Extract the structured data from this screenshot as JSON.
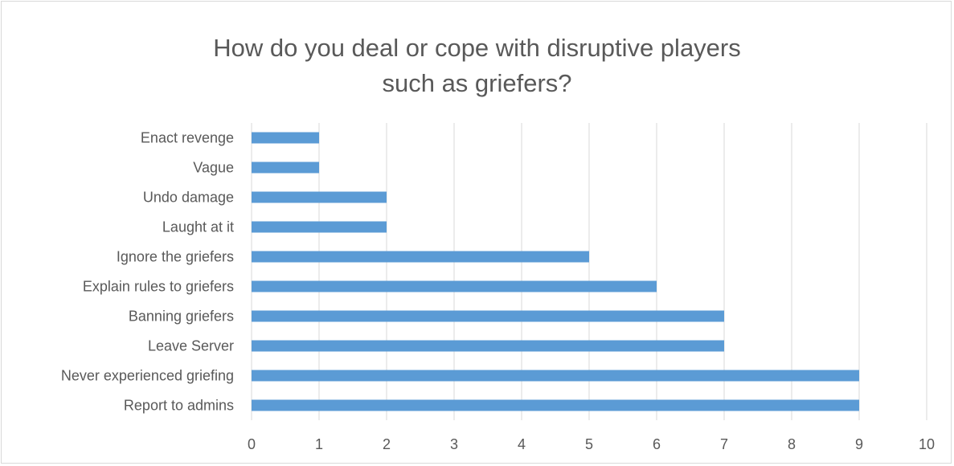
{
  "chart_data": {
    "type": "bar",
    "orientation": "horizontal",
    "title": "How do you deal or cope with disruptive players\nsuch as griefers?",
    "categories": [
      "Report to admins",
      "Never experienced griefing",
      "Leave Server",
      "Banning griefers",
      "Explain rules to griefers",
      "Ignore the griefers",
      "Laught at it",
      "Undo damage",
      "Vague",
      "Enact revenge"
    ],
    "values": [
      9,
      9,
      7,
      7,
      6,
      5,
      2,
      2,
      1,
      1
    ],
    "xlim": [
      0,
      10
    ],
    "x_ticks": [
      0,
      1,
      2,
      3,
      4,
      5,
      6,
      7,
      8,
      9,
      10
    ],
    "grid": "vertical",
    "bar_color": "#5b9bd5",
    "gridline_color": "#d9d9d9",
    "text_color": "#595959"
  }
}
